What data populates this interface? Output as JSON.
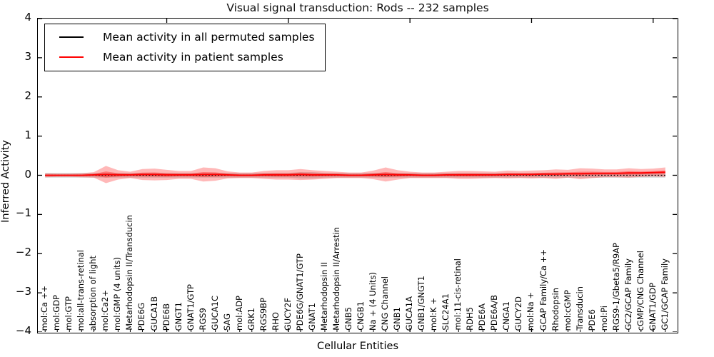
{
  "chart": {
    "title": "Visual signal transduction: Rods -- 232 samples",
    "xlabel": "Cellular Entities",
    "ylabel": "Inferred Activity",
    "legend": {
      "items": [
        {
          "label": "Mean activity in all permuted samples",
          "color": "#000000"
        },
        {
          "label": "Mean activity in patient samples",
          "color": "#ff0000"
        }
      ]
    }
  },
  "chart_data": {
    "type": "line",
    "title": "Visual signal transduction: Rods -- 232 samples",
    "xlabel": "Cellular Entities",
    "ylabel": "Inferred Activity",
    "ylim": [
      -4,
      4
    ],
    "grid": false,
    "legend_position": "upper left",
    "yticks": [
      {
        "value": 4,
        "label": "4"
      },
      {
        "value": 3,
        "label": "3"
      },
      {
        "value": 2,
        "label": "2"
      },
      {
        "value": 1,
        "label": "1"
      },
      {
        "value": 0,
        "label": "0"
      },
      {
        "value": -1,
        "label": "−1"
      },
      {
        "value": -2,
        "label": "−2"
      },
      {
        "value": -3,
        "label": "−3"
      },
      {
        "value": -4,
        "label": "−4"
      }
    ],
    "xtick_major_indices": [
      10,
      20,
      30,
      40,
      50
    ],
    "categories": [
      "mol:Ca ++",
      "mol:GDP",
      "mol:GTP",
      "mol:all-trans-retinal",
      "absorption of light",
      "mol:Ca2+",
      "mol:GMP (4 units)",
      "Metarhodopsin II/Transducin",
      "PDE6G",
      "GUCA1B",
      "PDE6B",
      "GNGT1",
      "GNAT1/GTP",
      "RGS9",
      "GUCA1C",
      "SAG",
      "mol:ADP",
      "GRK1",
      "RGS9BP",
      "RHO",
      "GUCY2F",
      "PDE6G/GNAT1/GTP",
      "GNAT1",
      "Metarhodopsin II",
      "Metarhodopsin II/Arrestin",
      "GNB5",
      "CNGB1",
      "Na + (4 Units)",
      "CNG Channel",
      "GNB1",
      "GUCA1A",
      "GNB1/GNGT1",
      "mol:K +",
      "SLC24A1",
      "mol:11-cis-retinal",
      "RDH5",
      "PDE6A",
      "PDE6A/B",
      "CNGA1",
      "GUCY2D",
      "mol:Na +",
      "GCAP Family/Ca ++",
      "Rhodopsin",
      "mol:cGMP",
      "Transducin",
      "PDE6",
      "mol:Pi",
      "RGS9-1/Gbeta5/R9AP",
      "GC2/GCAP Family",
      "cGMP/CNG Channel",
      "GNAT1/GDP",
      "GC1/GCAP Family"
    ],
    "series": [
      {
        "name": "Mean activity in all permuted samples",
        "color": "#000000",
        "line_style": "dotted",
        "band_color": "#000000",
        "band_alpha": 0.16,
        "values": [
          0,
          0,
          0,
          0,
          0,
          0,
          0,
          0,
          0,
          0,
          0,
          0,
          0,
          0,
          0,
          0,
          0,
          0,
          0,
          0,
          0,
          0,
          0,
          0,
          0,
          0,
          0,
          0,
          0,
          0,
          0,
          0,
          0,
          0,
          0,
          0,
          0,
          0,
          0,
          0,
          0,
          0,
          0,
          0,
          0,
          0,
          0,
          0,
          0,
          0,
          0,
          0
        ],
        "band_half": [
          0.06,
          0.06,
          0.06,
          0.06,
          0.06,
          0.06,
          0.06,
          0.06,
          0.06,
          0.06,
          0.06,
          0.06,
          0.06,
          0.06,
          0.06,
          0.06,
          0.06,
          0.06,
          0.06,
          0.06,
          0.06,
          0.08,
          0.08,
          0.06,
          0.06,
          0.06,
          0.06,
          0.06,
          0.06,
          0.06,
          0.06,
          0.06,
          0.06,
          0.06,
          0.06,
          0.06,
          0.06,
          0.06,
          0.06,
          0.06,
          0.06,
          0.06,
          0.06,
          0.06,
          0.06,
          0.06,
          0.06,
          0.06,
          0.06,
          0.06,
          0.06,
          0.06
        ]
      },
      {
        "name": "Mean activity in patient samples",
        "color": "#ff0000",
        "line_style": "solid",
        "band_color": "#ff0000",
        "band_alpha": 0.28,
        "values": [
          0,
          0,
          0,
          0,
          0.01,
          0.02,
          0.01,
          0.01,
          0.02,
          0.02,
          0.01,
          0.01,
          0.01,
          0.02,
          0.02,
          0.01,
          0,
          0,
          0.01,
          0.01,
          0.01,
          0.02,
          0.01,
          0.01,
          0.01,
          0,
          0,
          0.01,
          0.02,
          0.01,
          0.01,
          0,
          0,
          0.01,
          0.01,
          0.01,
          0.01,
          0.01,
          0.02,
          0.02,
          0.02,
          0.03,
          0.03,
          0.04,
          0.04,
          0.05,
          0.05,
          0.05,
          0.06,
          0.06,
          0.07,
          0.08
        ],
        "band_half": [
          0.05,
          0.04,
          0.04,
          0.05,
          0.07,
          0.22,
          0.12,
          0.08,
          0.14,
          0.15,
          0.13,
          0.1,
          0.1,
          0.18,
          0.16,
          0.09,
          0.07,
          0.07,
          0.1,
          0.12,
          0.12,
          0.14,
          0.12,
          0.1,
          0.08,
          0.07,
          0.07,
          0.11,
          0.18,
          0.12,
          0.08,
          0.07,
          0.07,
          0.08,
          0.1,
          0.1,
          0.09,
          0.08,
          0.1,
          0.09,
          0.1,
          0.1,
          0.12,
          0.1,
          0.14,
          0.12,
          0.1,
          0.1,
          0.12,
          0.1,
          0.1,
          0.12
        ]
      }
    ]
  }
}
